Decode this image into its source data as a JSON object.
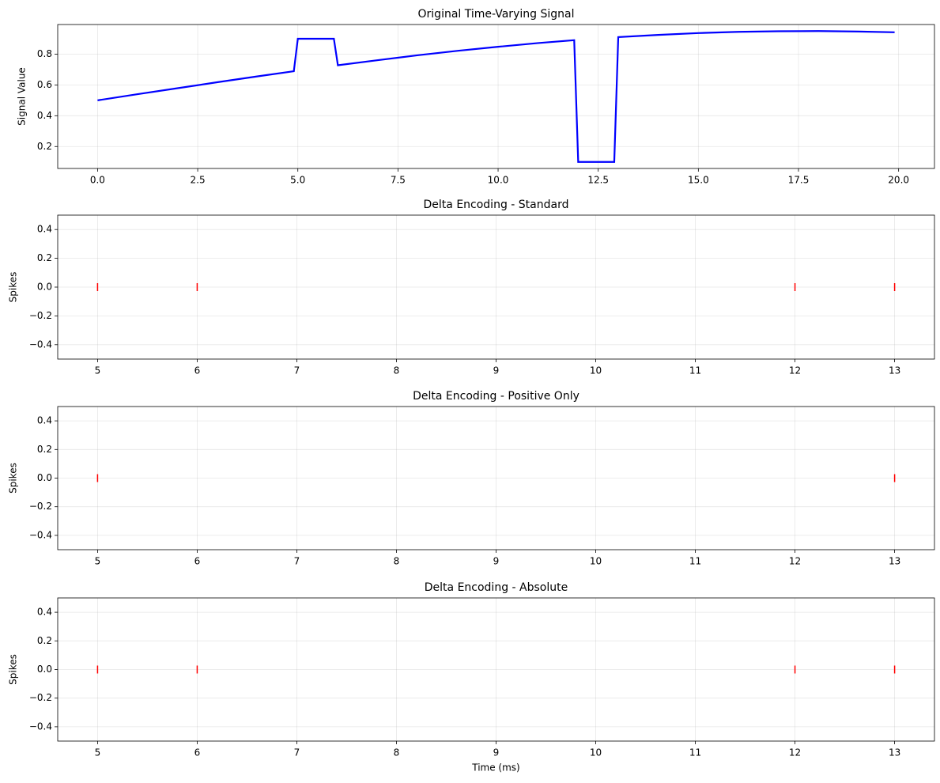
{
  "chart_data": [
    {
      "type": "line",
      "title": "Original Time-Varying Signal",
      "ylabel": "Signal Value",
      "color": "#0000ff",
      "grid": true,
      "x": [
        0,
        1,
        2,
        3,
        4,
        4.9,
        5,
        5.9,
        6,
        7,
        8,
        9,
        10,
        11,
        11.9,
        12,
        12.9,
        13,
        14,
        15,
        16,
        17,
        18,
        19,
        19.9
      ],
      "values": [
        0.5,
        0.54,
        0.579,
        0.618,
        0.656,
        0.689,
        0.9,
        0.9,
        0.728,
        0.761,
        0.793,
        0.822,
        0.848,
        0.872,
        0.891,
        0.1,
        0.1,
        0.911,
        0.925,
        0.937,
        0.945,
        0.949,
        0.95,
        0.947,
        0.942
      ],
      "xlim": [
        -0.995,
        20.895
      ],
      "ylim": [
        0.0575,
        0.9925
      ],
      "xticks": [
        {
          "value": 0,
          "label": "0.0"
        },
        2.5,
        {
          "value": 5,
          "label": "5.0"
        },
        7.5,
        {
          "value": 10,
          "label": "10.0"
        },
        12.5,
        {
          "value": 15,
          "label": "15.0"
        },
        17.5,
        {
          "value": 20,
          "label": "20.0"
        }
      ],
      "yticks": [
        0.2,
        0.4,
        0.6,
        0.8
      ]
    },
    {
      "type": "eventplot",
      "title": "Delta Encoding - Standard",
      "ylabel": "Spikes",
      "color": "#ff0000",
      "grid": true,
      "x": [
        5,
        6,
        12,
        13
      ],
      "values": [
        0,
        0,
        0,
        0
      ],
      "xlim": [
        4.6,
        13.4
      ],
      "ylim": [
        -0.5,
        0.5
      ],
      "xticks": [
        5,
        6,
        7,
        8,
        9,
        10,
        11,
        12,
        13
      ],
      "yticks": [
        {
          "value": -0.4,
          "label": "−0.4"
        },
        {
          "value": -0.2,
          "label": "−0.2"
        },
        {
          "value": 0,
          "label": "0.0"
        },
        0.2,
        0.4
      ]
    },
    {
      "type": "eventplot",
      "title": "Delta Encoding - Positive Only",
      "ylabel": "Spikes",
      "color": "#ff0000",
      "grid": true,
      "x": [
        5,
        13
      ],
      "values": [
        0,
        0
      ],
      "xlim": [
        4.6,
        13.4
      ],
      "ylim": [
        -0.5,
        0.5
      ],
      "xticks": [
        5,
        6,
        7,
        8,
        9,
        10,
        11,
        12,
        13
      ],
      "yticks": [
        {
          "value": -0.4,
          "label": "−0.4"
        },
        {
          "value": -0.2,
          "label": "−0.2"
        },
        {
          "value": 0,
          "label": "0.0"
        },
        0.2,
        0.4
      ]
    },
    {
      "type": "eventplot",
      "title": "Delta Encoding - Absolute",
      "ylabel": "Spikes",
      "xlabel": "Time (ms)",
      "color": "#ff0000",
      "grid": true,
      "x": [
        5,
        6,
        12,
        13
      ],
      "values": [
        0,
        0,
        0,
        0
      ],
      "xlim": [
        4.6,
        13.4
      ],
      "ylim": [
        -0.5,
        0.5
      ],
      "xticks": [
        5,
        6,
        7,
        8,
        9,
        10,
        11,
        12,
        13
      ],
      "yticks": [
        {
          "value": -0.4,
          "label": "−0.4"
        },
        {
          "value": -0.2,
          "label": "−0.2"
        },
        {
          "value": 0,
          "label": "0.0"
        },
        0.2,
        0.4
      ]
    }
  ]
}
